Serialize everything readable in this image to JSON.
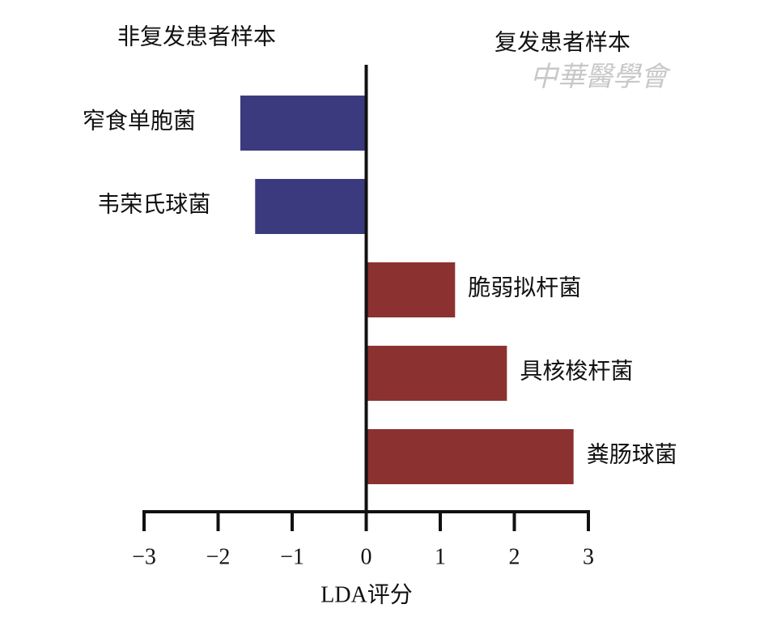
{
  "chart_data": {
    "type": "bar",
    "orientation": "horizontal",
    "categories": [
      "窄食单胞菌",
      "韦荣氏球菌",
      "脆弱拟杆菌",
      "具核梭杆菌",
      "粪肠球菌"
    ],
    "series": [
      {
        "name": "非复发患者样本",
        "color": "#3b3a7e",
        "values": [
          -1.7,
          -1.5,
          null,
          null,
          null
        ]
      },
      {
        "name": "复发患者样本",
        "color": "#8b3230",
        "values": [
          null,
          null,
          1.2,
          1.9,
          2.8
        ]
      }
    ],
    "xlabel": "LDA评分",
    "xlim": [
      -3,
      3
    ],
    "xticks": [
      {
        "value": -3,
        "label": "−3"
      },
      {
        "value": -2,
        "label": "−2"
      },
      {
        "value": -1,
        "label": "−1"
      },
      0,
      1,
      2,
      3
    ],
    "watermark": "中華醫學會"
  }
}
